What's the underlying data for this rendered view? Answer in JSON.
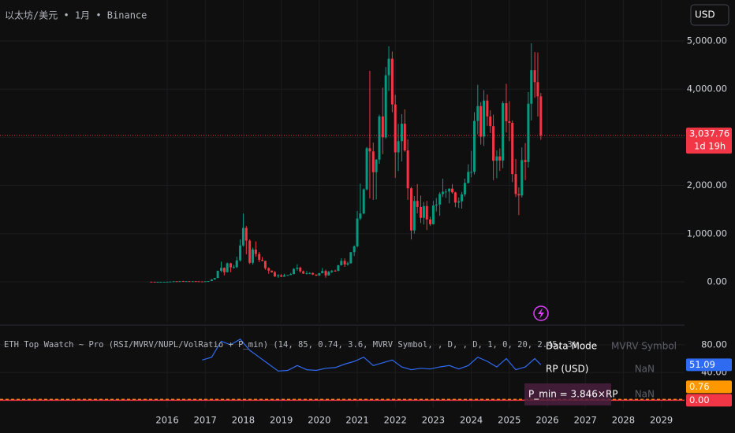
{
  "header": {
    "symbol": "以太坊/美元 • 1月 • Binance",
    "currency": "USD"
  },
  "indicator_title": "ETH Top Waatch ~ Pro (RSI/MVRV/NUPL/VolRatio + P_min) (14, 85, 0.74, 3.6, MVRV Symbol, , D, , D, 1, 0, 20, 2.45, 3)",
  "table": {
    "rows": [
      [
        "Data Mode",
        "MVRV Symbol"
      ],
      [
        "RP (USD)",
        "NaN"
      ],
      [
        "P_min = 3.846×RP",
        "NaN"
      ]
    ]
  },
  "chart_data": [
    {
      "type": "candlestick",
      "up_color": "#089981",
      "down_color": "#f23645",
      "grid": true,
      "xlim": [
        2011.6,
        2029.61
      ],
      "xticks": [
        2016,
        2017,
        2018,
        2019,
        2020,
        2021,
        2022,
        2023,
        2024,
        2025,
        2026,
        2027,
        2028,
        2029
      ],
      "ylim": [
        -850,
        5850
      ],
      "yticks": [
        {
          "value": 0,
          "label": "0.00"
        },
        {
          "value": 1000,
          "label": "1,000.00"
        },
        {
          "value": 2000,
          "label": "2,000.00"
        },
        {
          "value": 3000,
          "label": "3,000.00"
        },
        {
          "value": 4000,
          "label": "4,000.00"
        },
        {
          "value": 5000,
          "label": "5,000.00"
        }
      ],
      "last_price": {
        "value": 3037.76,
        "label": "3,037.76"
      },
      "countdown": "1d 19h",
      "x": [
        2015.58,
        2015.67,
        2015.75,
        2015.83,
        2015.92,
        2016.0,
        2016.08,
        2016.17,
        2016.25,
        2016.33,
        2016.42,
        2016.5,
        2016.58,
        2016.67,
        2016.75,
        2016.83,
        2016.92,
        2017.0,
        2017.08,
        2017.17,
        2017.25,
        2017.33,
        2017.42,
        2017.5,
        2017.58,
        2017.67,
        2017.75,
        2017.83,
        2017.92,
        2018.0,
        2018.08,
        2018.17,
        2018.25,
        2018.33,
        2018.42,
        2018.5,
        2018.58,
        2018.67,
        2018.75,
        2018.83,
        2018.92,
        2019.0,
        2019.08,
        2019.17,
        2019.25,
        2019.33,
        2019.42,
        2019.5,
        2019.58,
        2019.67,
        2019.75,
        2019.83,
        2019.92,
        2020.0,
        2020.08,
        2020.17,
        2020.25,
        2020.33,
        2020.42,
        2020.5,
        2020.58,
        2020.67,
        2020.75,
        2020.83,
        2020.92,
        2021.0,
        2021.08,
        2021.17,
        2021.25,
        2021.33,
        2021.42,
        2021.5,
        2021.58,
        2021.67,
        2021.75,
        2021.83,
        2021.92,
        2022.0,
        2022.08,
        2022.17,
        2022.25,
        2022.33,
        2022.42,
        2022.5,
        2022.58,
        2022.67,
        2022.75,
        2022.83,
        2022.92,
        2023.0,
        2023.08,
        2023.17,
        2023.25,
        2023.33,
        2023.42,
        2023.5,
        2023.58,
        2023.67,
        2023.75,
        2023.83,
        2023.92,
        2024.0,
        2024.08,
        2024.17,
        2024.25,
        2024.33,
        2024.42,
        2024.5,
        2024.58,
        2024.67,
        2024.75,
        2024.83,
        2024.92,
        2025.0,
        2025.08,
        2025.17,
        2025.25,
        2025.33,
        2025.42,
        2025.5,
        2025.58,
        2025.67,
        2025.75,
        2025.83
      ],
      "ohlc": [
        [
          2.8,
          2.8,
          0.4,
          1.3
        ],
        [
          1.3,
          1.4,
          0.6,
          0.7
        ],
        [
          0.7,
          1.2,
          0.4,
          0.9
        ],
        [
          0.9,
          1.1,
          0.8,
          0.9
        ],
        [
          0.9,
          1,
          0.8,
          0.9
        ],
        [
          0.9,
          2.4,
          0.9,
          2.2
        ],
        [
          2.2,
          6.5,
          2.2,
          6
        ],
        [
          6,
          15,
          6,
          11
        ],
        [
          11,
          11,
          7,
          8.8
        ],
        [
          8.8,
          15,
          8.5,
          14
        ],
        [
          14,
          21,
          11,
          12
        ],
        [
          12,
          15,
          10,
          12.5
        ],
        [
          12.5,
          13,
          10,
          11.5
        ],
        [
          11.5,
          14,
          11,
          13
        ],
        [
          13,
          14,
          10.5,
          11
        ],
        [
          11,
          11,
          8,
          8.5
        ],
        [
          8.5,
          8.8,
          6,
          8
        ],
        [
          8,
          11,
          8,
          10.7
        ],
        [
          10.7,
          16,
          10,
          16
        ],
        [
          16,
          54,
          16,
          50
        ],
        [
          50,
          80,
          42,
          80
        ],
        [
          80,
          230,
          78,
          230
        ],
        [
          230,
          420,
          200,
          290
        ],
        [
          290,
          300,
          135,
          200
        ],
        [
          200,
          400,
          195,
          385
        ],
        [
          385,
          395,
          200,
          300
        ],
        [
          300,
          350,
          275,
          305
        ],
        [
          305,
          520,
          285,
          445
        ],
        [
          445,
          880,
          420,
          755
        ],
        [
          755,
          1420,
          730,
          1120
        ],
        [
          1120,
          1160,
          570,
          855
        ],
        [
          855,
          880,
          370,
          395
        ],
        [
          395,
          710,
          360,
          670
        ],
        [
          670,
          840,
          520,
          578
        ],
        [
          578,
          620,
          410,
          455
        ],
        [
          455,
          515,
          425,
          435
        ],
        [
          435,
          435,
          250,
          283
        ],
        [
          283,
          300,
          167,
          233
        ],
        [
          233,
          235,
          190,
          198
        ],
        [
          198,
          225,
          100,
          114
        ],
        [
          114,
          160,
          82,
          134
        ],
        [
          134,
          160,
          100,
          107
        ],
        [
          107,
          165,
          103,
          136
        ],
        [
          136,
          145,
          125,
          142
        ],
        [
          142,
          185,
          140,
          162
        ],
        [
          162,
          285,
          155,
          268
        ],
        [
          268,
          365,
          230,
          294
        ],
        [
          294,
          315,
          190,
          218
        ],
        [
          218,
          235,
          165,
          172
        ],
        [
          172,
          225,
          153,
          180
        ],
        [
          180,
          200,
          158,
          183
        ],
        [
          183,
          195,
          140,
          152
        ],
        [
          152,
          155,
          118,
          130
        ],
        [
          130,
          185,
          127,
          180
        ],
        [
          180,
          287,
          176,
          226
        ],
        [
          226,
          253,
          86,
          133
        ],
        [
          133,
          227,
          130,
          207
        ],
        [
          207,
          245,
          180,
          231
        ],
        [
          231,
          253,
          216,
          226
        ],
        [
          226,
          350,
          222,
          345
        ],
        [
          345,
          490,
          340,
          435
        ],
        [
          435,
          488,
          310,
          360
        ],
        [
          360,
          420,
          335,
          386
        ],
        [
          386,
          622,
          375,
          616
        ],
        [
          616,
          755,
          535,
          737
        ],
        [
          737,
          1470,
          715,
          1314
        ],
        [
          1314,
          2040,
          1280,
          1419
        ],
        [
          1419,
          1940,
          1400,
          1919
        ],
        [
          1919,
          2800,
          1900,
          2773
        ],
        [
          2773,
          4380,
          1730,
          2707
        ],
        [
          2707,
          2890,
          1700,
          2275
        ],
        [
          2275,
          2550,
          1710,
          2536
        ],
        [
          2536,
          3470,
          2450,
          3433
        ],
        [
          3433,
          4030,
          2650,
          3000
        ],
        [
          3000,
          4460,
          2970,
          4288
        ],
        [
          4288,
          4890,
          3960,
          4631
        ],
        [
          4631,
          4780,
          3520,
          3683
        ],
        [
          3683,
          3880,
          2160,
          2688
        ],
        [
          2688,
          3280,
          2300,
          2920
        ],
        [
          2920,
          3480,
          2500,
          3282
        ],
        [
          3282,
          3580,
          2700,
          2727
        ],
        [
          2727,
          2960,
          1700,
          1942
        ],
        [
          1942,
          1970,
          880,
          1067
        ],
        [
          1067,
          1780,
          1000,
          1679
        ],
        [
          1679,
          2030,
          1420,
          1553
        ],
        [
          1553,
          1790,
          1220,
          1328
        ],
        [
          1328,
          1660,
          1190,
          1572
        ],
        [
          1572,
          1680,
          1075,
          1295
        ],
        [
          1295,
          1350,
          1160,
          1196
        ],
        [
          1196,
          1680,
          1190,
          1585
        ],
        [
          1585,
          1740,
          1460,
          1605
        ],
        [
          1605,
          1860,
          1370,
          1822
        ],
        [
          1822,
          2140,
          1760,
          1869
        ],
        [
          1869,
          1930,
          1740,
          1874
        ],
        [
          1874,
          1940,
          1630,
          1934
        ],
        [
          1934,
          2030,
          1830,
          1857
        ],
        [
          1857,
          1870,
          1550,
          1645
        ],
        [
          1645,
          1750,
          1530,
          1671
        ],
        [
          1671,
          1865,
          1520,
          1816
        ],
        [
          1816,
          2140,
          1770,
          2052
        ],
        [
          2052,
          2440,
          2040,
          2282
        ],
        [
          2282,
          2720,
          2170,
          2283
        ],
        [
          2283,
          3520,
          2230,
          3340
        ],
        [
          3340,
          4090,
          3060,
          3647
        ],
        [
          3647,
          3730,
          2850,
          3014
        ],
        [
          3014,
          3980,
          2820,
          3763
        ],
        [
          3763,
          3890,
          3240,
          3433
        ],
        [
          3433,
          3560,
          3090,
          3232
        ],
        [
          3232,
          3470,
          2110,
          2513
        ],
        [
          2513,
          2730,
          2150,
          2603
        ],
        [
          2603,
          2770,
          2300,
          2518
        ],
        [
          2518,
          3750,
          2360,
          3708
        ],
        [
          3708,
          4110,
          3100,
          3332
        ],
        [
          3332,
          3750,
          2920,
          3300
        ],
        [
          3300,
          3350,
          2070,
          2237
        ],
        [
          2237,
          2550,
          1760,
          1822
        ],
        [
          1822,
          1960,
          1385,
          1793
        ],
        [
          1793,
          2790,
          1750,
          2528
        ],
        [
          2528,
          2880,
          2110,
          2486
        ],
        [
          2486,
          3940,
          2370,
          3698
        ],
        [
          3698,
          4950,
          3350,
          4393
        ],
        [
          4393,
          4770,
          3820,
          4145
        ],
        [
          4145,
          4760,
          3430,
          3850
        ],
        [
          3850,
          3920,
          2950,
          3037.76
        ]
      ]
    },
    {
      "type": "line",
      "color": "#2f6bf0",
      "grid": true,
      "xlim": [
        2011.6,
        2029.61
      ],
      "ylim": [
        -11,
        106
      ],
      "yticks": [
        {
          "value": 0,
          "label": "0.00"
        },
        {
          "value": 40,
          "label": "40.00"
        },
        {
          "value": 80,
          "label": "80.00"
        }
      ],
      "x": [
        2016.92,
        2017.17,
        2017.42,
        2017.67,
        2017.92,
        2018.17,
        2018.42,
        2018.67,
        2018.92,
        2019.17,
        2019.42,
        2019.67,
        2019.92,
        2020.17,
        2020.42,
        2020.67,
        2020.92,
        2021.17,
        2021.42,
        2021.67,
        2021.92,
        2022.17,
        2022.42,
        2022.67,
        2022.92,
        2023.17,
        2023.42,
        2023.67,
        2023.92,
        2024.17,
        2024.42,
        2024.67,
        2024.92,
        2025.17,
        2025.42,
        2025.67,
        2025.83
      ],
      "values": [
        58,
        62,
        85,
        80,
        88,
        72,
        62,
        52,
        42,
        43,
        50,
        44,
        43,
        46,
        47,
        52,
        56,
        62,
        50,
        54,
        58,
        48,
        44,
        46,
        45,
        48,
        50,
        45,
        50,
        62,
        56,
        48,
        60,
        44,
        48,
        60,
        51.09
      ],
      "hlines": [
        {
          "value": 0.76,
          "color": "#ff9800",
          "dashed": true
        },
        {
          "value": 0,
          "label": "0.00",
          "color": "#f23645",
          "dashed": false
        }
      ]
    }
  ]
}
